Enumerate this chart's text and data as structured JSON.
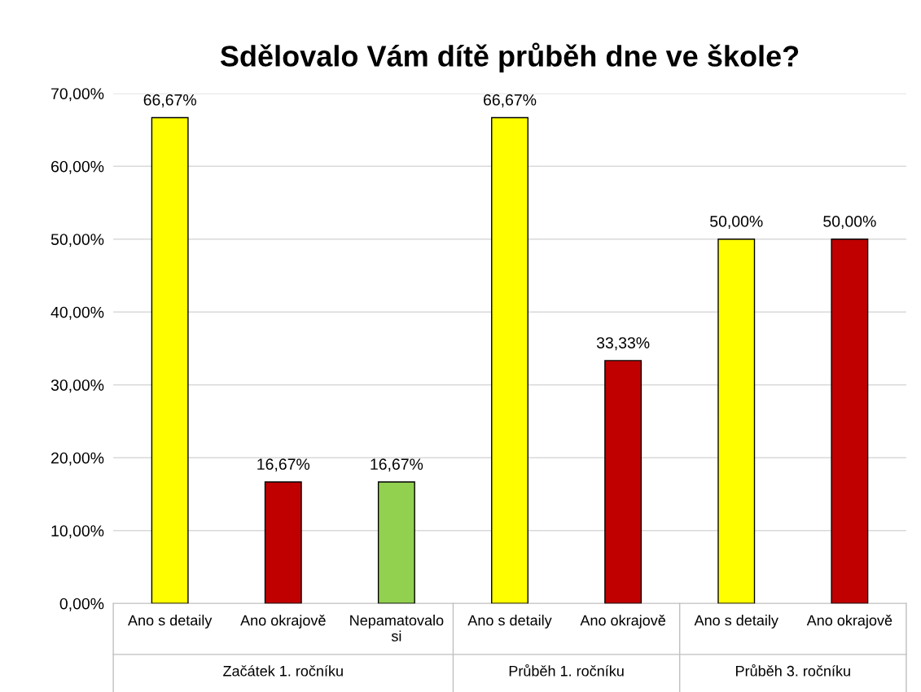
{
  "chart_data": {
    "type": "bar",
    "title": "Sdělovalo Vám dítě průběh dne ve škole?",
    "categories": [
      "Ano s detaily",
      "Ano okrajově",
      "Nepamatovalo\nsi",
      "Ano s detaily",
      "Ano okrajově",
      "Ano s detaily",
      "Ano okrajově"
    ],
    "values": [
      66.67,
      16.67,
      16.67,
      66.67,
      33.33,
      50.0,
      50.0
    ],
    "value_labels": [
      "66,67%",
      "16,67%",
      "16,67%",
      "66,67%",
      "33,33%",
      "50,00%",
      "50,00%"
    ],
    "colors": [
      "#ffff00",
      "#c00000",
      "#92d050",
      "#ffff00",
      "#c00000",
      "#ffff00",
      "#c00000"
    ],
    "ylim": [
      0,
      70
    ],
    "yticks": [
      {
        "value": 0,
        "label": "0,00%"
      },
      {
        "value": 10,
        "label": "10,00%"
      },
      {
        "value": 20,
        "label": "20,00%"
      },
      {
        "value": 30,
        "label": "30,00%"
      },
      {
        "value": 40,
        "label": "40,00%"
      },
      {
        "value": 50,
        "label": "50,00%"
      },
      {
        "value": 60,
        "label": "60,00%"
      },
      {
        "value": 70,
        "label": "70,00%"
      }
    ],
    "grid": "y",
    "annotations": [
      "Začátek 1. ročníku",
      "Průběh 1. ročníku",
      "Průběh 3. ročníku"
    ]
  }
}
